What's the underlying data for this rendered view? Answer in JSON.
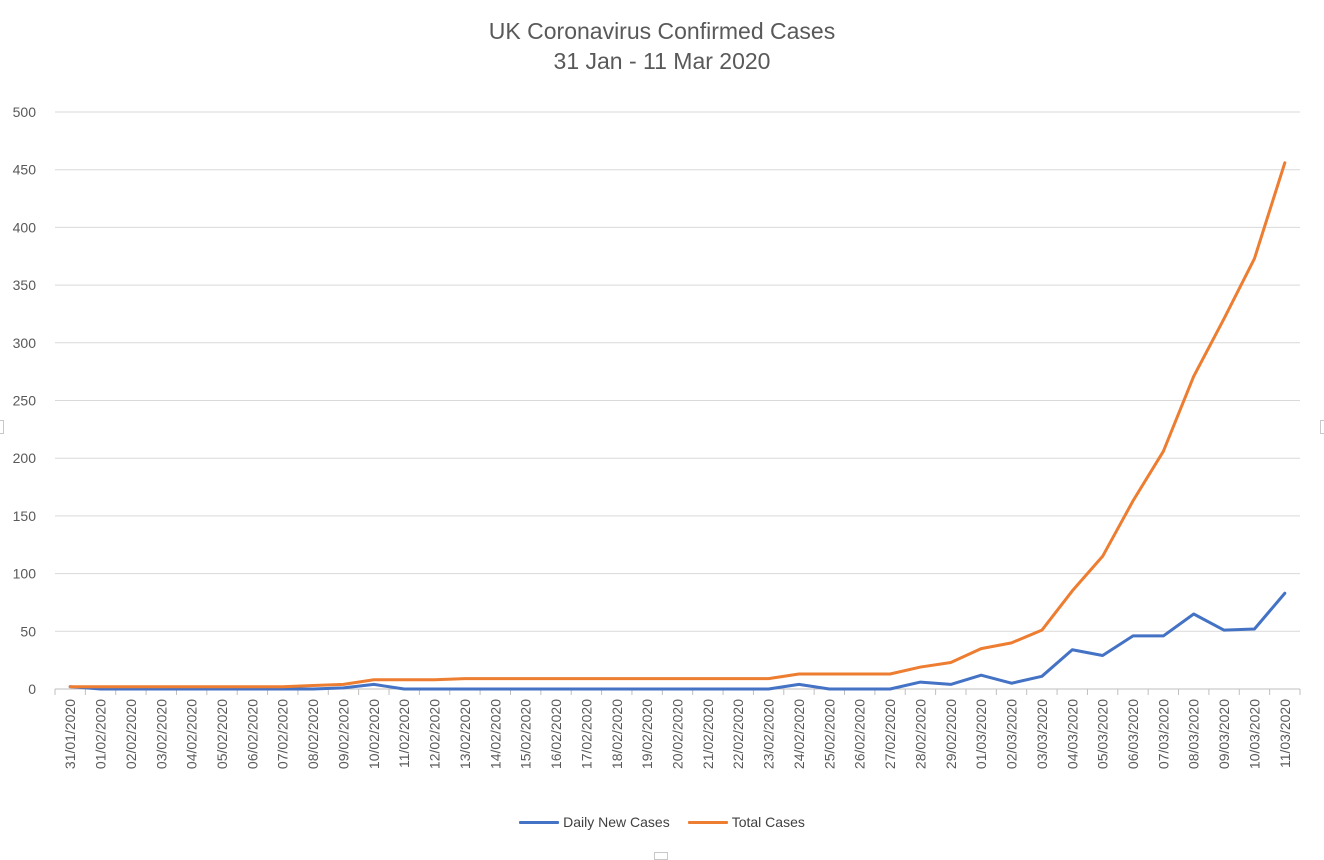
{
  "chart_data": {
    "type": "line",
    "title": "UK Coronavirus Confirmed Cases",
    "subtitle": "31 Jan - 11 Mar 2020",
    "xlabel": "",
    "ylabel": "",
    "ylim": [
      0,
      500
    ],
    "yticks": [
      0,
      50,
      100,
      150,
      200,
      250,
      300,
      350,
      400,
      450,
      500
    ],
    "grid": true,
    "legend_position": "bottom",
    "categories": [
      "31/01/2020",
      "01/02/2020",
      "02/02/2020",
      "03/02/2020",
      "04/02/2020",
      "05/02/2020",
      "06/02/2020",
      "07/02/2020",
      "08/02/2020",
      "09/02/2020",
      "10/02/2020",
      "11/02/2020",
      "12/02/2020",
      "13/02/2020",
      "14/02/2020",
      "15/02/2020",
      "16/02/2020",
      "17/02/2020",
      "18/02/2020",
      "19/02/2020",
      "20/02/2020",
      "21/02/2020",
      "22/02/2020",
      "23/02/2020",
      "24/02/2020",
      "25/02/2020",
      "26/02/2020",
      "27/02/2020",
      "28/02/2020",
      "29/02/2020",
      "01/03/2020",
      "02/03/2020",
      "03/03/2020",
      "04/03/2020",
      "05/03/2020",
      "06/03/2020",
      "07/03/2020",
      "08/03/2020",
      "09/03/2020",
      "10/03/2020",
      "11/03/2020"
    ],
    "series": [
      {
        "name": "Daily New Cases",
        "color": "#4472C4",
        "values": [
          2,
          0,
          0,
          0,
          0,
          0,
          0,
          0,
          0,
          1,
          4,
          0,
          0,
          0,
          0,
          0,
          0,
          0,
          0,
          0,
          0,
          0,
          0,
          0,
          4,
          0,
          0,
          0,
          6,
          4,
          12,
          5,
          11,
          34,
          29,
          46,
          46,
          65,
          51,
          52,
          83
        ]
      },
      {
        "name": "Total Cases",
        "color": "#ED7D31",
        "values": [
          2,
          2,
          2,
          2,
          2,
          2,
          2,
          2,
          3,
          4,
          8,
          8,
          8,
          9,
          9,
          9,
          9,
          9,
          9,
          9,
          9,
          9,
          9,
          9,
          13,
          13,
          13,
          13,
          19,
          23,
          35,
          40,
          51,
          85,
          115,
          163,
          206,
          271,
          321,
          373,
          456
        ]
      }
    ]
  }
}
